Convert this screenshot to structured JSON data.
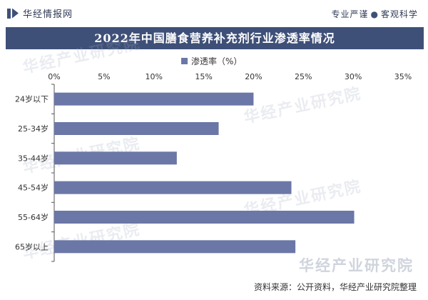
{
  "header": {
    "brand": "华经情报网",
    "slogan_left": "专业严谨",
    "slogan_dot": "●",
    "slogan_right": "客观科学"
  },
  "watermarks": {
    "text": "华经产业研究院",
    "big": "华经产业研究院"
  },
  "footer": {
    "source": "资料来源：公开资料，华经产业研究院整理"
  },
  "colors": {
    "title_band": "#3f5078",
    "bar": "#6b77a6"
  },
  "chart_data": {
    "type": "bar",
    "orientation": "horizontal",
    "title": "2022年中国膳食营养补充剂行业渗透率情况",
    "categories": [
      "24岁以下",
      "25-34岁",
      "35-44岁",
      "45-54岁",
      "55-64岁",
      "65岁以上"
    ],
    "series": [
      {
        "name": "渗透率（%）",
        "values": [
          20.0,
          16.5,
          12.3,
          23.8,
          30.1,
          24.2
        ]
      }
    ],
    "xlim": [
      0,
      35
    ],
    "xticks": [
      0,
      5,
      10,
      15,
      20,
      25,
      30,
      35
    ],
    "tick_format": "%",
    "grid": false,
    "legend_position": "top"
  }
}
